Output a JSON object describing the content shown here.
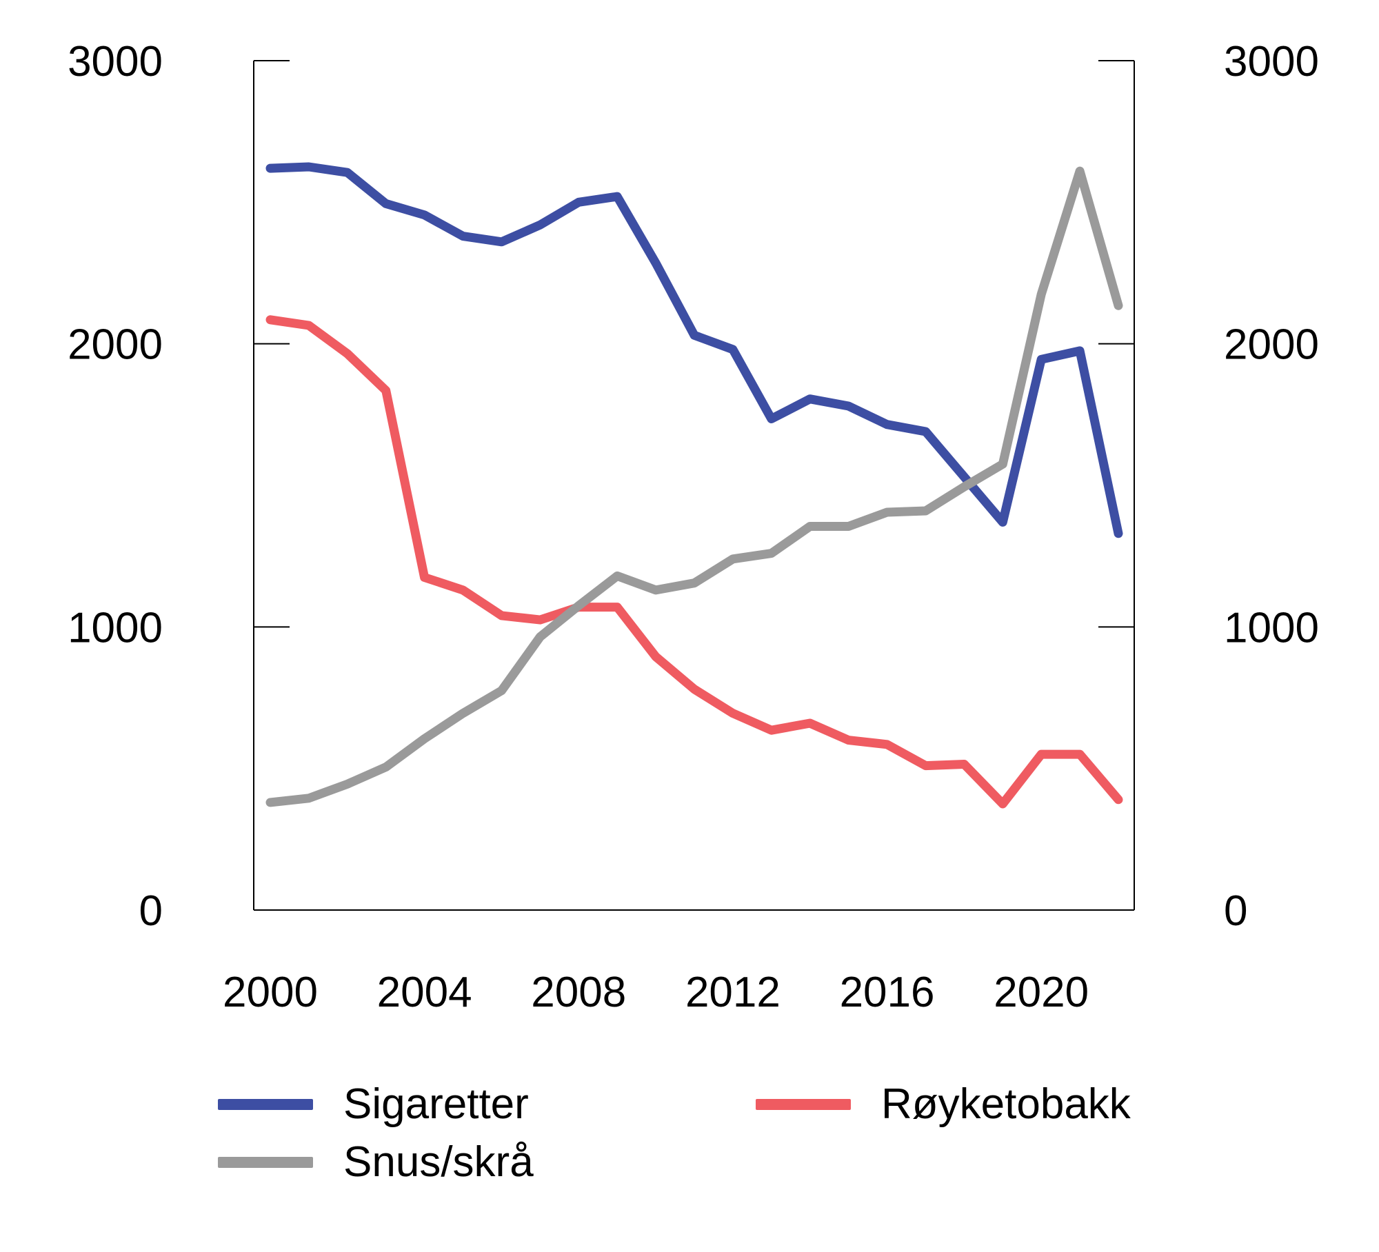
{
  "chart_data": {
    "type": "line",
    "title": "",
    "xlabel": "",
    "ylabel": "",
    "x": [
      2000,
      2001,
      2002,
      2003,
      2004,
      2005,
      2006,
      2007,
      2008,
      2009,
      2010,
      2011,
      2012,
      2013,
      2014,
      2015,
      2016,
      2017,
      2018,
      2019,
      2020,
      2021,
      2022
    ],
    "xticks": [
      2000,
      2004,
      2008,
      2012,
      2016,
      2020
    ],
    "ylim": [
      0,
      3000
    ],
    "yticks": [
      0,
      1000,
      2000,
      3000
    ],
    "y2lim": [
      0,
      3000
    ],
    "y2ticks": [
      0,
      1000,
      2000,
      3000
    ],
    "grid": false,
    "legend_position": "bottom",
    "series": [
      {
        "name": "Sigaretter",
        "color": "#3d4ea3",
        "axis": "left",
        "values": [
          2620,
          2625,
          2605,
          2495,
          2455,
          2380,
          2360,
          2420,
          2500,
          2520,
          2285,
          2030,
          1980,
          1735,
          1805,
          1780,
          1715,
          1690,
          1530,
          1370,
          1945,
          1975,
          1330
        ]
      },
      {
        "name": "Røyketobakk",
        "color": "#ef5b61",
        "axis": "left",
        "values": [
          2085,
          2065,
          1965,
          1835,
          1175,
          1130,
          1040,
          1025,
          1070,
          1070,
          895,
          780,
          695,
          635,
          660,
          600,
          585,
          510,
          515,
          375,
          550,
          550,
          390
        ]
      },
      {
        "name": "Snus/skrå",
        "color": "#9a9a9a",
        "axis": "left",
        "values": [
          380,
          395,
          445,
          505,
          605,
          695,
          775,
          965,
          1075,
          1180,
          1130,
          1155,
          1240,
          1260,
          1355,
          1355,
          1405,
          1410,
          1495,
          1575,
          2175,
          2610,
          2135
        ]
      }
    ]
  }
}
